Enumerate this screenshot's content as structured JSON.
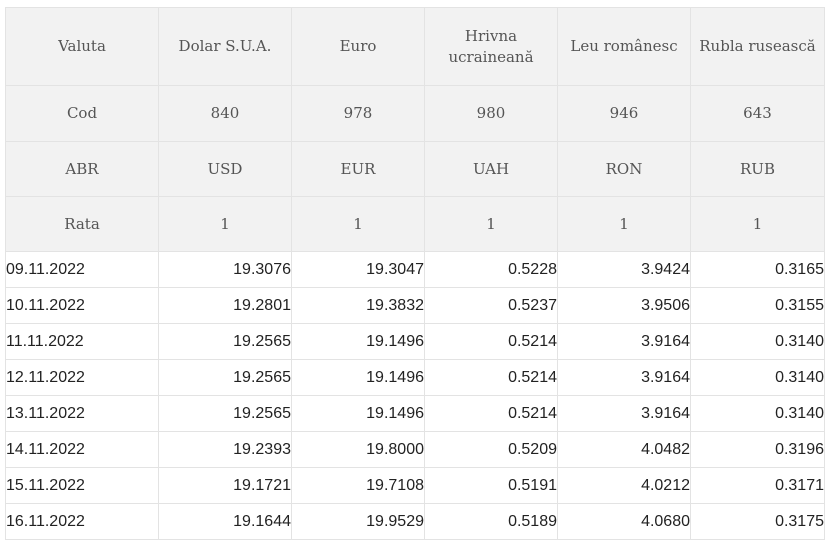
{
  "table": {
    "header_labels": {
      "valuta": "Valuta",
      "cod": "Cod",
      "abr": "ABR",
      "rata": "Rata"
    },
    "currencies": [
      {
        "name": "Dolar S.U.A.",
        "code": "840",
        "abr": "USD",
        "rate": "1"
      },
      {
        "name": "Euro",
        "code": "978",
        "abr": "EUR",
        "rate": "1"
      },
      {
        "name": "Hrivna ucraineană",
        "code": "980",
        "abr": "UAH",
        "rate": "1"
      },
      {
        "name": "Leu românesc",
        "code": "946",
        "abr": "RON",
        "rate": "1"
      },
      {
        "name": "Rubla rusească",
        "code": "643",
        "abr": "RUB",
        "rate": "1"
      }
    ],
    "rows": [
      {
        "date": "09.11.2022",
        "values": [
          "19.3076",
          "19.3047",
          "0.5228",
          "3.9424",
          "0.3165"
        ]
      },
      {
        "date": "10.11.2022",
        "values": [
          "19.2801",
          "19.3832",
          "0.5237",
          "3.9506",
          "0.3155"
        ]
      },
      {
        "date": "11.11.2022",
        "values": [
          "19.2565",
          "19.1496",
          "0.5214",
          "3.9164",
          "0.3140"
        ]
      },
      {
        "date": "12.11.2022",
        "values": [
          "19.2565",
          "19.1496",
          "0.5214",
          "3.9164",
          "0.3140"
        ]
      },
      {
        "date": "13.11.2022",
        "values": [
          "19.2565",
          "19.1496",
          "0.5214",
          "3.9164",
          "0.3140"
        ]
      },
      {
        "date": "14.11.2022",
        "values": [
          "19.2393",
          "19.8000",
          "0.5209",
          "4.0482",
          "0.3196"
        ]
      },
      {
        "date": "15.11.2022",
        "values": [
          "19.1721",
          "19.7108",
          "0.5191",
          "4.0212",
          "0.3171"
        ]
      },
      {
        "date": "16.11.2022",
        "values": [
          "19.1644",
          "19.9529",
          "0.5189",
          "4.0680",
          "0.3175"
        ]
      }
    ]
  }
}
